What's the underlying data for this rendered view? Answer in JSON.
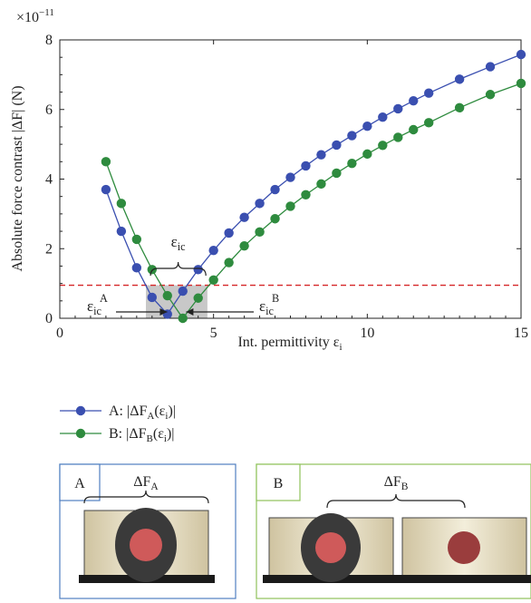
{
  "chart_data": {
    "type": "line",
    "exponent_label": "×10",
    "exponent_power": "−11",
    "ylabel": "Absolute force contrast |ΔF| (N)",
    "xlabel": "Int. permittivity ε",
    "xlabel_sub": "i",
    "xlim": [
      0,
      15
    ],
    "ylim": [
      0,
      8
    ],
    "xticks": [
      "0",
      "5",
      "10",
      "15"
    ],
    "yticks": [
      "0",
      "2",
      "4",
      "6",
      "8"
    ],
    "threshold": {
      "y": 0.95,
      "style": "dashed",
      "color": "#d62728"
    },
    "shaded_region": {
      "x": [
        2.8,
        4.8
      ],
      "y": [
        0,
        0.95
      ]
    },
    "annotations": {
      "eps_ic": {
        "main": "ε",
        "sub": "ic"
      },
      "eps_ic_A": {
        "main": "ε",
        "sub": "ic",
        "sup": "A"
      },
      "eps_ic_B": {
        "main": "ε",
        "sub": "ic",
        "sup": "B"
      }
    },
    "series": [
      {
        "name": "A: |ΔF",
        "name_sub": "A",
        "name_rest": "(ε",
        "name_rest_sub": "i",
        "name_end": ")|",
        "color": "#3a4fb0",
        "x": [
          1.5,
          2.0,
          2.5,
          3.0,
          3.5,
          4.0,
          4.5,
          5.0,
          5.5,
          6.0,
          6.5,
          7.0,
          7.5,
          8.0,
          8.5,
          9.0,
          9.5,
          10.0,
          10.5,
          11.0,
          11.5,
          12.0,
          13.0,
          14.0,
          15.0
        ],
        "y": [
          3.7,
          2.5,
          1.45,
          0.6,
          0.12,
          0.78,
          1.4,
          1.95,
          2.45,
          2.9,
          3.3,
          3.7,
          4.05,
          4.38,
          4.7,
          4.98,
          5.25,
          5.52,
          5.78,
          6.02,
          6.25,
          6.47,
          6.87,
          7.23,
          7.58
        ]
      },
      {
        "name": "B: |ΔF",
        "name_sub": "B",
        "name_rest": "(ε",
        "name_rest_sub": "i",
        "name_end": ")|",
        "color": "#2e8b3e",
        "x": [
          1.5,
          2.0,
          2.5,
          3.0,
          3.5,
          4.0,
          4.5,
          5.0,
          5.5,
          6.0,
          6.5,
          7.0,
          7.5,
          8.0,
          8.5,
          9.0,
          9.5,
          10.0,
          10.5,
          11.0,
          11.5,
          12.0,
          13.0,
          14.0,
          15.0
        ],
        "y": [
          4.5,
          3.3,
          2.27,
          1.4,
          0.65,
          0.0,
          0.58,
          1.1,
          1.6,
          2.08,
          2.48,
          2.86,
          3.22,
          3.55,
          3.86,
          4.17,
          4.45,
          4.72,
          4.97,
          5.2,
          5.42,
          5.62,
          6.05,
          6.43,
          6.75
        ]
      }
    ]
  },
  "insets": [
    {
      "tag": "A",
      "delta": "ΔF",
      "delta_sub": "A",
      "border": "#4f7fc0"
    },
    {
      "tag": "B",
      "delta": "ΔF",
      "delta_sub": "B",
      "border": "#8fc25a"
    }
  ]
}
